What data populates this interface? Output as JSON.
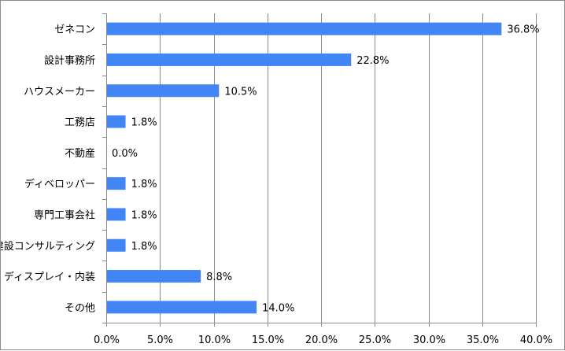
{
  "chart_data": {
    "type": "bar",
    "orientation": "horizontal",
    "categories": [
      "ゼネコン",
      "設計事務所",
      "ハウスメーカー",
      "工務店",
      "不動産",
      "ディベロッパー",
      "専門工事会社",
      "建設コンサルティング",
      "ディスプレイ・内装",
      "その他"
    ],
    "values": [
      36.8,
      22.8,
      10.5,
      1.8,
      0.0,
      1.8,
      1.8,
      1.8,
      8.8,
      14.0
    ],
    "data_labels": [
      "36.8%",
      "22.8%",
      "10.5%",
      "1.8%",
      "0.0%",
      "1.8%",
      "1.8%",
      "1.8%",
      "8.8%",
      "14.0%"
    ],
    "xlim": [
      0,
      40
    ],
    "x_ticks": [
      0,
      5,
      10,
      15,
      20,
      25,
      30,
      35,
      40
    ],
    "x_tick_labels": [
      "0.0%",
      "5.0%",
      "10.0%",
      "15.0%",
      "20.0%",
      "25.0%",
      "30.0%",
      "35.0%",
      "40.0%"
    ],
    "grid": "vertical",
    "legend": "none",
    "bar_color": "#4285f4",
    "grid_color": "#8c8c8c"
  }
}
